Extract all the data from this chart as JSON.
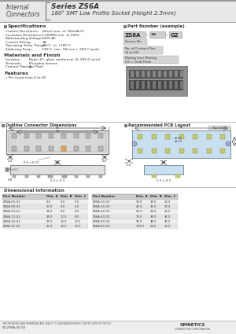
{
  "title_category_1": "Internal",
  "title_category_2": "Connectors",
  "title_series": "Series ZS6A",
  "title_desc": "180° SMT Low Profile Socket (Height 2.5mm)",
  "spec_title": "Specifications",
  "spec_items": [
    [
      "Contact Resistance:",
      "30mΩ max. at 100mA DC"
    ],
    [
      "Insulation Resistance:",
      "5,000MΩ min. at 500V"
    ],
    [
      "Withstanding Voltage:",
      "500V AC"
    ],
    [
      "Current Rating:",
      "1A"
    ],
    [
      "Operating Temp. Range:",
      "-40°C  to +185°C"
    ],
    [
      "Soldering Temp.:",
      "230°C  min. (60 sec.), 260°C peak"
    ]
  ],
  "mat_title": "Materials and Finish",
  "mat_items": [
    [
      "Insulator:",
      "Nylon 6T, glass reinforced, UL 94V-0 rated"
    ],
    [
      "Terminals:",
      "Phosphor bronze"
    ],
    [
      "Contact Plating:",
      "Au Flash"
    ]
  ],
  "feat_title": "Features",
  "feat_item": "• Pin count from 6 to 60",
  "pn_title": "Part Number (example)",
  "pn_series": "ZS6A",
  "pn_dashes": "-    **    -",
  "pn_g2": "G2",
  "pn_label1": "Series No.",
  "pn_label2": "No. of Contact Pins\n(6 to 60)",
  "pn_label3": "Mating Face Plating\nG2 = Gold Flash",
  "dim_title": "Outline Connector Dimensions",
  "pcb_title": "Recommended PCB Layout",
  "pcb_topview": "Top View",
  "table_title": "Dimensional Information",
  "table_headers": [
    "Part Number",
    "Dim. A",
    "Dim. B",
    "Dim. C"
  ],
  "table_data_left": [
    [
      "ZS6A-06-G2",
      "6.0",
      "4.0",
      "2.0"
    ],
    [
      "ZS6A-08-G2",
      "10.0",
      "6.0",
      "4.0"
    ],
    [
      "ZS6A-10-G2",
      "14.0",
      "8.0",
      "6.0"
    ],
    [
      "ZS6A-12-G2",
      "18.0",
      "10.0",
      "8.0"
    ],
    [
      "ZS6A-14-G2",
      "22.0",
      "12.0",
      "10.0"
    ],
    [
      "ZS6A-16-G2",
      "26.0",
      "14.0",
      "12.0"
    ]
  ],
  "table_data_right": [
    [
      "ZS6A-20-G2",
      "34.0",
      "18.0",
      "16.0"
    ],
    [
      "ZS6A-24-G2",
      "42.0",
      "22.0",
      "20.0"
    ],
    [
      "ZS6A-30-G2",
      "54.0",
      "28.0",
      "26.0"
    ],
    [
      "ZS6A-40-G2",
      "74.0",
      "38.0",
      "36.0"
    ],
    [
      "ZS6A-50-G2",
      "94.0",
      "48.0",
      "46.0"
    ],
    [
      "ZS6A-60-G2",
      "114.0",
      "58.0",
      "56.0"
    ]
  ],
  "footer_text": "SPECIFICATIONS AND DIMENSIONS ARE SUBJECT TO ALTERATION WITHOUT NOTICE WITHOUT NOTICE",
  "footer_ds": "DS-ZS6A-20-G2",
  "footer_company": "OMNETICS",
  "footer_corp": "CONNECTOR CORPORATION",
  "bg_white": "#ffffff",
  "bg_light": "#f5f5f5",
  "bg_gray": "#e8e8e8",
  "bg_mid": "#d0d0d0",
  "bg_dark": "#aaaaaa",
  "color_text": "#222222",
  "color_gray": "#555555",
  "color_line": "#888888",
  "color_blue_light": "#c8dff0",
  "color_box_fill": "#d8d8d8",
  "color_orange": "#e8a050"
}
